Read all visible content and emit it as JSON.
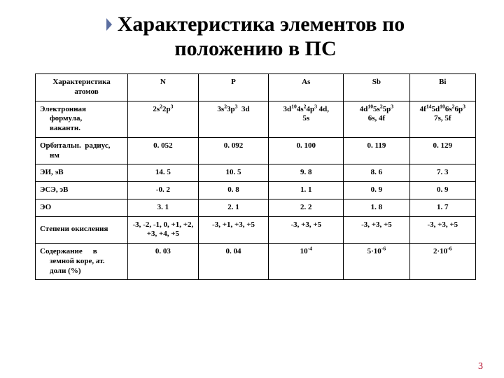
{
  "title_line1": "Характеристика элементов по",
  "title_line2": "положению в ПС",
  "marker_color": "#5b6ea0",
  "columns": [
    "Характеристика атомов",
    "N",
    "P",
    "As",
    "Sb",
    "Bi"
  ],
  "rows": [
    {
      "label": "Электронная формула, вакантн.",
      "N": {
        "html": "2s<sup>2</sup>2p<sup>3</sup>"
      },
      "P": {
        "html": "3s<sup>2</sup>3p<sup>3</sup> &nbsp;3d"
      },
      "As": {
        "html": "3d<sup>10</sup>4s<sup>2</sup>4p<sup>3</sup> 4d,<br>5s"
      },
      "Sb": {
        "html": "4d<sup>10</sup>5s<sup>2</sup>5p<sup>3</sup><br>6s, 4f"
      },
      "Bi": {
        "html": "4f<sup>14</sup>5d<sup>10</sup>6s<sup>2</sup>6p<sup>3</sup><br>7s, 5f"
      }
    },
    {
      "label": "Орбитальн. радиус, нм",
      "N": "0. 052",
      "P": "0. 092",
      "As": "0. 100",
      "Sb": "0. 119",
      "Bi": "0. 129"
    },
    {
      "label": "ЭИ, эВ",
      "N": "14. 5",
      "P": "10. 5",
      "As": "9. 8",
      "Sb": "8. 6",
      "Bi": "7. 3"
    },
    {
      "label": "ЭСЭ, эВ",
      "N": "-0. 2",
      "P": "0. 8",
      "As": "1. 1",
      "Sb": "0. 9",
      "Bi": "0. 9"
    },
    {
      "label": "ЭО",
      "N": "3. 1",
      "P": "2. 1",
      "As": "2. 2",
      "Sb": "1. 8",
      "Bi": "1. 7"
    },
    {
      "label": "Степени окисления",
      "N": "-3, -2, -1, 0, +1, +2, +3, +4, +5",
      "P": "-3, +1, +3, +5",
      "As": "-3, +3, +5",
      "Sb": "-3, +3, +5",
      "Bi": "-3, +3, +5"
    },
    {
      "label_html": "Содержание<span class='spaced'>&nbsp;&nbsp;&nbsp;&nbsp;</span>в<br><span class='indent'>земной коре, ат.<br>доли (%)</span>",
      "N": "0. 03",
      "P": "0. 04",
      "As": {
        "html": "10<sup>-4</sup>"
      },
      "Sb": {
        "html": "5·10<sup>-6</sup>"
      },
      "Bi": {
        "html": "2·10<sup>-6</sup>"
      }
    }
  ],
  "page_number": "3",
  "table": {
    "border_color": "#000000",
    "font_size_pt": 11,
    "header_bg": "#ffffff",
    "cell_bg": "#ffffff"
  }
}
